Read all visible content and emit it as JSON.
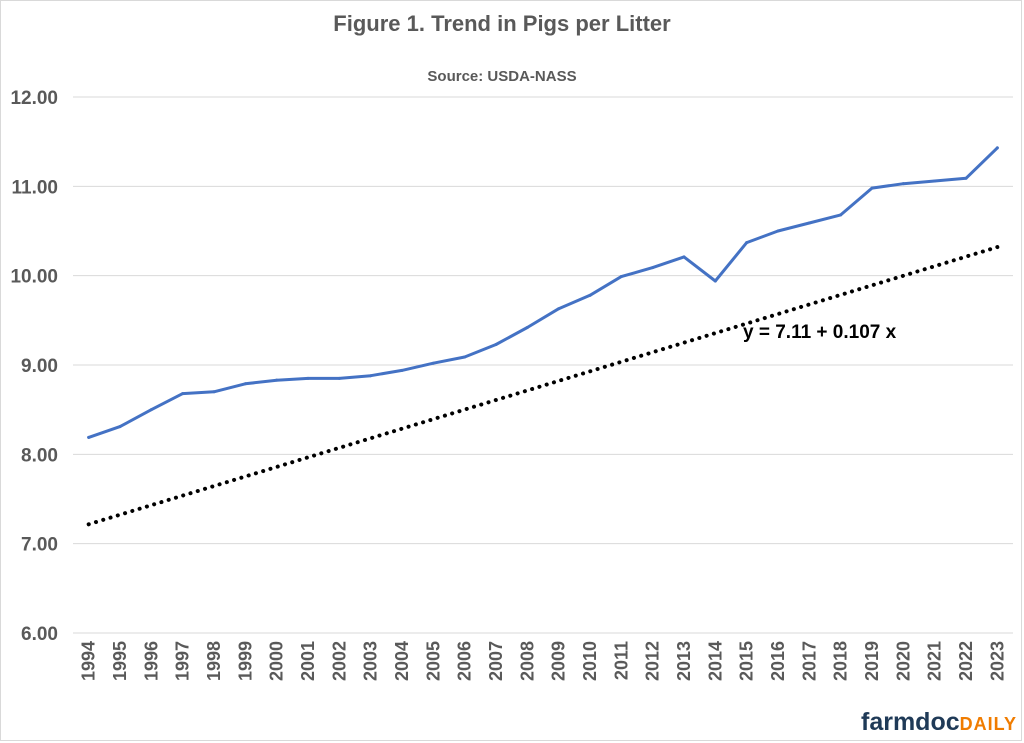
{
  "chart_data": {
    "type": "line",
    "title": "Figure  1. Trend in Pigs per Litter",
    "subtitle": "Source: USDA-NASS",
    "xlabel": "",
    "ylabel": "",
    "ylim": [
      6,
      12
    ],
    "yticks": [
      "12.00",
      "11.00",
      "10.00",
      "9.00",
      "8.00",
      "7.00",
      "6.00"
    ],
    "grid": true,
    "categories": [
      "1994",
      "1995",
      "1996",
      "1997",
      "1998",
      "1999",
      "2000",
      "2001",
      "2002",
      "2003",
      "2004",
      "2005",
      "2006",
      "2007",
      "2008",
      "2009",
      "2010",
      "2011",
      "2012",
      "2013",
      "2014",
      "2015",
      "2016",
      "2017",
      "2018",
      "2019",
      "2020",
      "2021",
      "2022",
      "2023"
    ],
    "series": [
      {
        "values": [
          8.19,
          8.31,
          8.5,
          8.68,
          8.7,
          8.79,
          8.83,
          8.85,
          8.85,
          8.88,
          8.94,
          9.02,
          9.09,
          9.23,
          9.42,
          9.63,
          9.78,
          9.99,
          10.09,
          10.21,
          9.94,
          10.37,
          10.5,
          10.59,
          10.68,
          10.98,
          11.03,
          11.06,
          11.09,
          11.43
        ],
        "color": "#4472c4"
      }
    ],
    "trendline": {
      "intercept": 7.11,
      "slope": 0.107,
      "style": "dotted",
      "color": "#000000",
      "equation_label": "y = 7.11 + 0.107 x"
    }
  },
  "branding": {
    "logo_part1": "farmdoc",
    "logo_part2": "DAILY"
  }
}
